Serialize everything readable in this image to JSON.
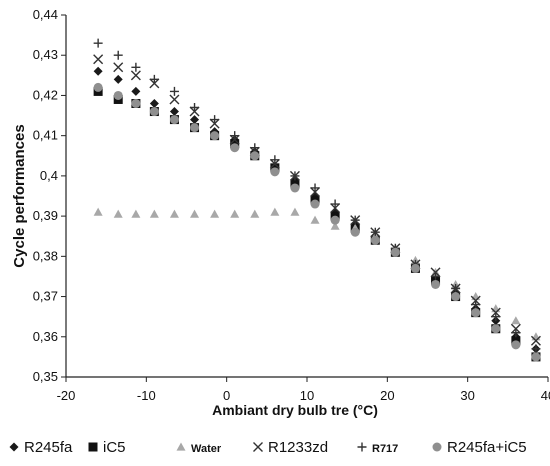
{
  "chart_data": {
    "type": "scatter",
    "title": "",
    "xlabel": "Ambiant dry bulb tre (°C)",
    "ylabel": "Cycle performances",
    "xlim": [
      -20,
      40
    ],
    "ylim": [
      0.35,
      0.44
    ],
    "xticks": [
      -20,
      -10,
      0,
      10,
      20,
      30,
      40
    ],
    "xtick_labels": [
      "-20",
      "-10",
      "0",
      "10",
      "20",
      "30",
      "40"
    ],
    "yticks": [
      0.35,
      0.36,
      0.37,
      0.38,
      0.39,
      0.4,
      0.41,
      0.42,
      0.43,
      0.44
    ],
    "ytick_labels": [
      "0,35",
      "0,36",
      "0,37",
      "0,38",
      "0,39",
      "0,4",
      "0,41",
      "0,42",
      "0,43",
      "0,44"
    ],
    "grid": false,
    "legend_position": "bottom",
    "x": [
      -16,
      -13.5,
      -11.3,
      -9,
      -6.5,
      -4,
      -1.5,
      1,
      3.5,
      6,
      8.5,
      11,
      13.5,
      16,
      18.5,
      21,
      23.5,
      26,
      28.5,
      31,
      33.5,
      36,
      38.5,
      41
    ],
    "series": [
      {
        "name": "R245fa",
        "marker": "diamond",
        "color": "#1a1a1a",
        "values": [
          0.426,
          0.424,
          0.421,
          0.418,
          0.416,
          0.414,
          0.411,
          0.409,
          0.406,
          0.402,
          0.399,
          0.395,
          0.391,
          0.388,
          0.385,
          0.381,
          0.378,
          0.375,
          0.371,
          0.367,
          0.364,
          0.36,
          0.357,
          0.353
        ]
      },
      {
        "name": "iC5",
        "marker": "square",
        "color": "#111111",
        "values": [
          0.421,
          0.419,
          0.418,
          0.416,
          0.414,
          0.412,
          0.41,
          0.408,
          0.405,
          0.402,
          0.398,
          0.394,
          0.39,
          0.387,
          0.384,
          0.381,
          0.377,
          0.374,
          0.37,
          0.366,
          0.362,
          0.359,
          0.355,
          0.352
        ]
      },
      {
        "name": "Water",
        "marker": "triangle",
        "color": "#a8a8a8",
        "values": [
          0.391,
          0.3905,
          0.3905,
          0.3905,
          0.3905,
          0.3905,
          0.3905,
          0.3905,
          0.3905,
          0.391,
          0.391,
          0.389,
          0.3875,
          0.387,
          0.385,
          0.382,
          0.379,
          0.376,
          0.373,
          0.37,
          0.367,
          0.364,
          0.36,
          0.357
        ]
      },
      {
        "name": "R1233zd",
        "marker": "x",
        "color": "#333333",
        "values": [
          0.429,
          0.427,
          0.425,
          0.423,
          0.419,
          0.416,
          0.413,
          0.409,
          0.406,
          0.403,
          0.4,
          0.396,
          0.392,
          0.389,
          0.386,
          0.382,
          0.378,
          0.376,
          0.372,
          0.369,
          0.366,
          0.362,
          0.359,
          0.355
        ]
      },
      {
        "name": "R717",
        "marker": "plus",
        "color": "#333333",
        "values": [
          0.433,
          0.43,
          0.427,
          0.424,
          0.421,
          0.417,
          0.414,
          0.41,
          0.407,
          0.404,
          0.4,
          0.397,
          0.393,
          0.389,
          0.386,
          0.382,
          0.378,
          0.375,
          0.372,
          0.368,
          0.365,
          0.361,
          0.357,
          0.354
        ]
      },
      {
        "name": "R245fa+iC5",
        "marker": "circle",
        "color": "#8f8f8f",
        "values": [
          0.422,
          0.42,
          0.418,
          0.416,
          0.414,
          0.412,
          0.41,
          0.407,
          0.405,
          0.401,
          0.397,
          0.393,
          0.389,
          0.386,
          0.384,
          0.381,
          0.377,
          0.373,
          0.37,
          0.366,
          0.362,
          0.358,
          0.355,
          0.352
        ]
      }
    ]
  }
}
